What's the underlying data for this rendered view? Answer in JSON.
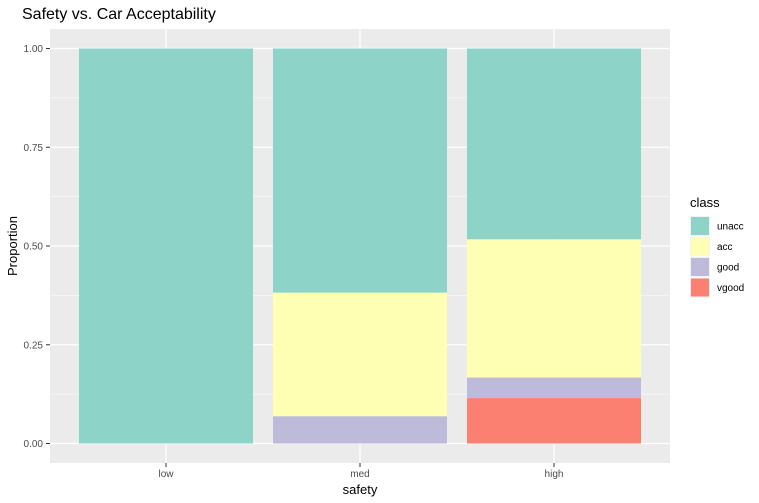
{
  "chart_data": {
    "type": "bar",
    "stacked": true,
    "title": "Safety vs. Car Acceptability",
    "xlabel": "safety",
    "ylabel": "Proportion",
    "categories": [
      "low",
      "med",
      "high"
    ],
    "ylim": [
      0,
      1
    ],
    "yticks": [
      "0.00",
      "0.25",
      "0.50",
      "0.75",
      "1.00"
    ],
    "legend_title": "class",
    "legend_position": "right",
    "grid": true,
    "series": [
      {
        "name": "unacc",
        "color": "#8dd3c7",
        "values": [
          1.0,
          0.618,
          0.483
        ]
      },
      {
        "name": "acc",
        "color": "#ffffb3",
        "values": [
          0.0,
          0.313,
          0.35
        ]
      },
      {
        "name": "good",
        "color": "#bebada",
        "values": [
          0.0,
          0.069,
          0.052
        ]
      },
      {
        "name": "vgood",
        "color": "#fb8072",
        "values": [
          0.0,
          0.0,
          0.115
        ]
      }
    ]
  }
}
